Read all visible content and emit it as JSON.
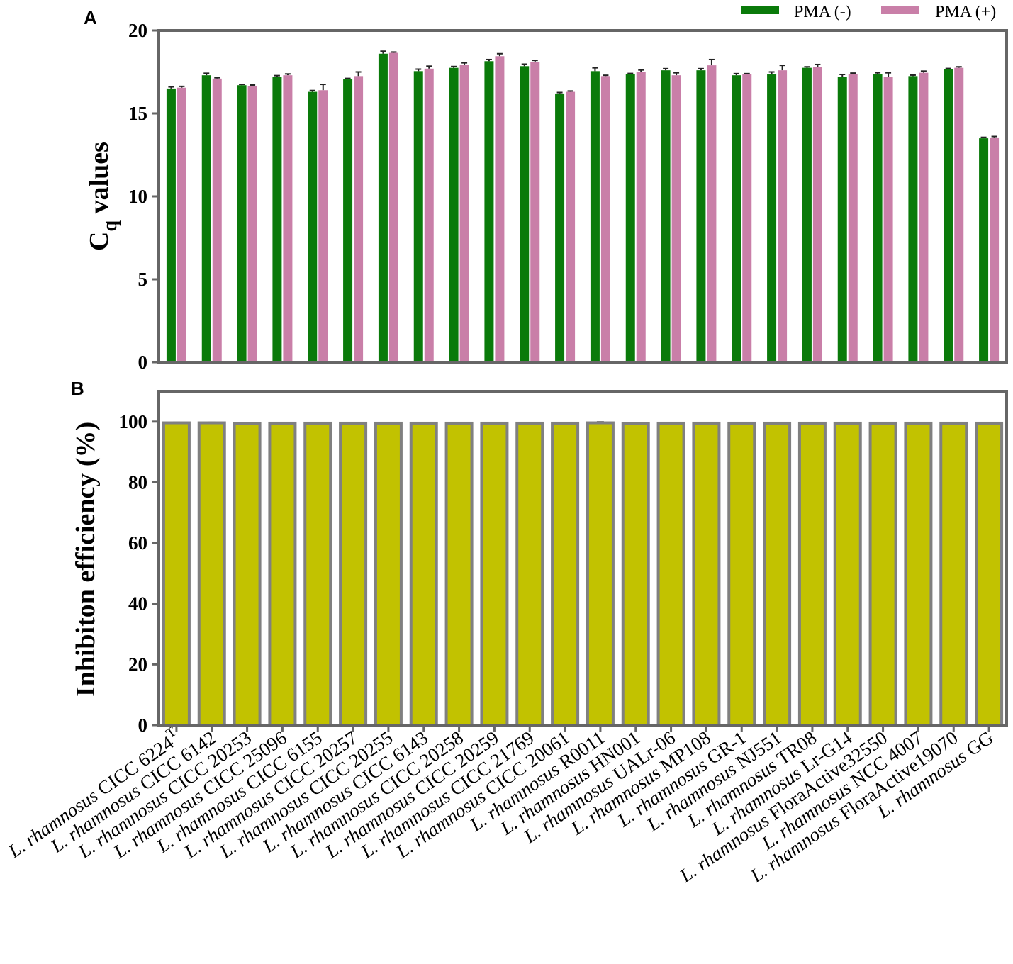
{
  "chart_data": [
    {
      "panel": "A",
      "type": "bar",
      "ylabel_main": "C",
      "ylabel_sub": "q",
      "ylabel_rest": " values",
      "ylim": [
        0,
        20
      ],
      "yticks": [
        0,
        5,
        10,
        15,
        20
      ],
      "legend_position": "top-right",
      "series": [
        {
          "name": "PMA (-)",
          "color": "#0a7a0a",
          "values": [
            16.5,
            17.3,
            16.7,
            17.2,
            16.3,
            17.05,
            18.6,
            17.55,
            17.75,
            18.15,
            17.85,
            16.2,
            17.55,
            17.35,
            17.6,
            17.6,
            17.3,
            17.35,
            17.75,
            17.2,
            17.35,
            17.25,
            17.65,
            13.5
          ],
          "errors": [
            0.1,
            0.12,
            0.05,
            0.08,
            0.08,
            0.06,
            0.15,
            0.12,
            0.08,
            0.1,
            0.12,
            0.06,
            0.2,
            0.06,
            0.1,
            0.1,
            0.1,
            0.15,
            0.06,
            0.15,
            0.1,
            0.06,
            0.06,
            0.06
          ]
        },
        {
          "name": "PMA (+)",
          "color": "#c97fa8",
          "values": [
            16.55,
            17.1,
            16.65,
            17.3,
            16.4,
            17.25,
            18.65,
            17.7,
            17.95,
            18.45,
            18.1,
            16.3,
            17.25,
            17.5,
            17.3,
            17.9,
            17.35,
            17.6,
            17.8,
            17.35,
            17.2,
            17.45,
            17.75,
            13.55
          ],
          "errors": [
            0.08,
            0.05,
            0.06,
            0.08,
            0.35,
            0.25,
            0.05,
            0.15,
            0.1,
            0.15,
            0.1,
            0.05,
            0.05,
            0.12,
            0.15,
            0.35,
            0.05,
            0.3,
            0.15,
            0.08,
            0.25,
            0.1,
            0.06,
            0.06
          ]
        }
      ]
    },
    {
      "panel": "B",
      "type": "bar",
      "ylabel": "Inhibiton efficiency (%)",
      "ylim": [
        0,
        110
      ],
      "yticks": [
        0,
        20,
        40,
        60,
        80,
        100
      ],
      "fill_color": "#c2c200",
      "edge_color": "#808080",
      "values": [
        99.6,
        99.6,
        99.4,
        99.5,
        99.5,
        99.5,
        99.5,
        99.5,
        99.5,
        99.5,
        99.5,
        99.5,
        99.6,
        99.4,
        99.5,
        99.5,
        99.5,
        99.5,
        99.5,
        99.5,
        99.5,
        99.5,
        99.5,
        99.5
      ],
      "errors": [
        0.2,
        0.2,
        0.3,
        0.1,
        0.1,
        0.1,
        0.1,
        0.1,
        0.1,
        0.1,
        0.1,
        0.1,
        0.3,
        0.3,
        0.1,
        0.1,
        0.1,
        0.1,
        0.1,
        0.1,
        0.1,
        0.1,
        0.1,
        0.1
      ]
    }
  ],
  "categories": [
    {
      "species": "L. rhamnosus",
      "strain": "CICC 6224",
      "sup": "T"
    },
    {
      "species": "L. rhamnosus",
      "strain": "CICC 6142",
      "sup": ""
    },
    {
      "species": "L. rhamnosus",
      "strain": "CICC 20253",
      "sup": ""
    },
    {
      "species": "L. rhamnosus",
      "strain": "CICC 25096",
      "sup": ""
    },
    {
      "species": "L. rhamnosus",
      "strain": "CICC 6155",
      "sup": ""
    },
    {
      "species": "L. rhamnosus",
      "strain": "CICC 20257",
      "sup": ""
    },
    {
      "species": "L. rhamnosus",
      "strain": "CICC 20255",
      "sup": ""
    },
    {
      "species": "L. rhamnosus",
      "strain": "CICC 6143",
      "sup": ""
    },
    {
      "species": "L. rhamnosus",
      "strain": "CICC 20258",
      "sup": ""
    },
    {
      "species": "L. rhamnosus",
      "strain": "CICC 20259",
      "sup": ""
    },
    {
      "species": "L. rhamnosus",
      "strain": "CICC 21769",
      "sup": ""
    },
    {
      "species": "L. rhamnosus",
      "strain": "CICC 20061",
      "sup": ""
    },
    {
      "species": "L. rhamnosus",
      "strain": "R0011",
      "sup": ""
    },
    {
      "species": "L. rhamnosus",
      "strain": "HN001",
      "sup": ""
    },
    {
      "species": "L. rhamnosus",
      "strain": "UALr-06",
      "sup": ""
    },
    {
      "species": "L. rhamnosus",
      "strain": "MP108",
      "sup": ""
    },
    {
      "species": "L. rhamnosus",
      "strain": "GR-1",
      "sup": ""
    },
    {
      "species": "L. rhamnosus",
      "strain": "NJ551",
      "sup": ""
    },
    {
      "species": "L. rhamnosus",
      "strain": "TR08",
      "sup": ""
    },
    {
      "species": "L. rhamnosus",
      "strain": "Lr-G14",
      "sup": ""
    },
    {
      "species": "L. rhamnosus",
      "strain": "FloraActive32550",
      "sup": ""
    },
    {
      "species": "L. rhamnosus",
      "strain": "NCC 4007",
      "sup": ""
    },
    {
      "species": "L. rhamnosus",
      "strain": "FloraActive19070",
      "sup": ""
    },
    {
      "species": "L. rhamnosus",
      "strain": "GG",
      "sup": ""
    }
  ],
  "axis_color": "#666666"
}
